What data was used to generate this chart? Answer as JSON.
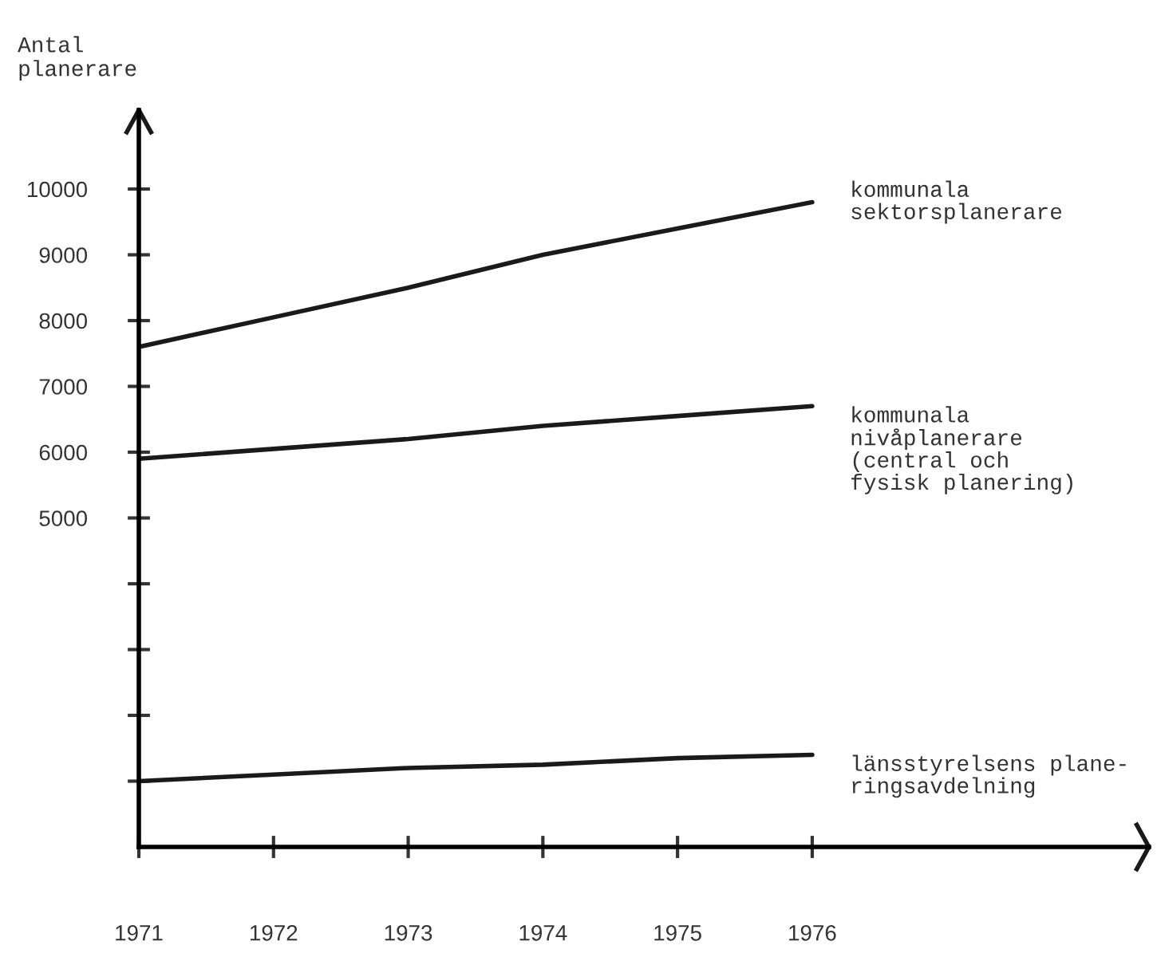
{
  "chart_data": {
    "type": "line",
    "ylabel": "Antal\nplanerare",
    "x": [
      1971,
      1972,
      1973,
      1974,
      1975,
      1976
    ],
    "series": [
      {
        "name": "kommunala\nsektorsplanerare",
        "color": "#1a1a1a",
        "values": [
          7600,
          8050,
          8500,
          9000,
          9400,
          9800
        ]
      },
      {
        "name": "kommunala\nnivåplanerare\n(central och\nfysisk planering)",
        "color": "#1a1a1a",
        "values": [
          5900,
          6050,
          6200,
          6400,
          6550,
          6700
        ]
      },
      {
        "name": "länsstyrelsens plane-\nringsavdelning",
        "color": "#1a1a1a",
        "values": [
          1000,
          1100,
          1200,
          1250,
          1350,
          1400
        ]
      }
    ],
    "xlim": [
      1971,
      1978.5
    ],
    "ylim": [
      0,
      11200
    ],
    "xticks": [
      1971,
      1972,
      1973,
      1974,
      1975,
      1976
    ],
    "yticks": [
      {
        "value": 1000,
        "label": null
      },
      {
        "value": 2000,
        "label": null
      },
      {
        "value": 3000,
        "label": null
      },
      {
        "value": 4000,
        "label": null
      },
      {
        "value": 5000,
        "label": "5000"
      },
      {
        "value": 6000,
        "label": "6000"
      },
      {
        "value": 7000,
        "label": "7000"
      },
      {
        "value": 8000,
        "label": "8000"
      },
      {
        "value": 9000,
        "label": "9000"
      },
      {
        "value": 10000,
        "label": "10000"
      }
    ],
    "grid": false,
    "legend": false,
    "marker": "none",
    "line_style": "solid"
  }
}
